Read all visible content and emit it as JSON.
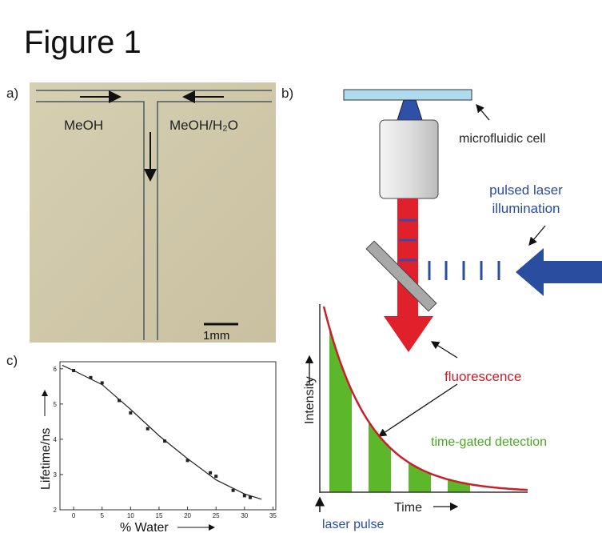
{
  "title": "Figure 1",
  "panels": {
    "a": {
      "label": "a)",
      "left_stream": "MeOH",
      "right_stream": "MeOH/H₂O",
      "scale_bar": "1mm"
    },
    "b": {
      "label": "b)",
      "slide": "microfluidic cell",
      "laser": [
        "pulsed laser",
        "illumination"
      ],
      "emission": "fluorescence",
      "detection": "time-gated detection",
      "y_label": "Intensity",
      "x_label": "Time",
      "start": "laser pulse"
    },
    "c": {
      "label": "c)"
    }
  },
  "chart_data": {
    "type": "scatter",
    "x_label": "% Water",
    "y_label": "Lifetime/ns",
    "xlim": [
      -2.4,
      35.5
    ],
    "ylim": [
      2,
      6.2
    ],
    "xticks": [
      0,
      5,
      10,
      15,
      20,
      25,
      30,
      35
    ],
    "yticks": [
      2,
      3,
      4,
      5,
      6
    ],
    "series": [
      {
        "mode": "markers",
        "color": "#222222",
        "x": [
          0,
          3,
          5,
          8,
          10,
          13,
          16,
          20,
          24,
          25,
          28,
          30,
          31
        ],
        "values": [
          5.95,
          5.75,
          5.6,
          5.1,
          4.75,
          4.3,
          3.95,
          3.4,
          3.05,
          2.95,
          2.55,
          2.4,
          2.35
        ]
      },
      {
        "mode": "line",
        "color": "#222222",
        "x": [
          -2,
          0,
          5,
          10,
          15,
          20,
          25,
          30,
          33
        ],
        "values": [
          6.1,
          5.95,
          5.55,
          4.85,
          4.1,
          3.45,
          2.85,
          2.45,
          2.3
        ]
      }
    ]
  }
}
